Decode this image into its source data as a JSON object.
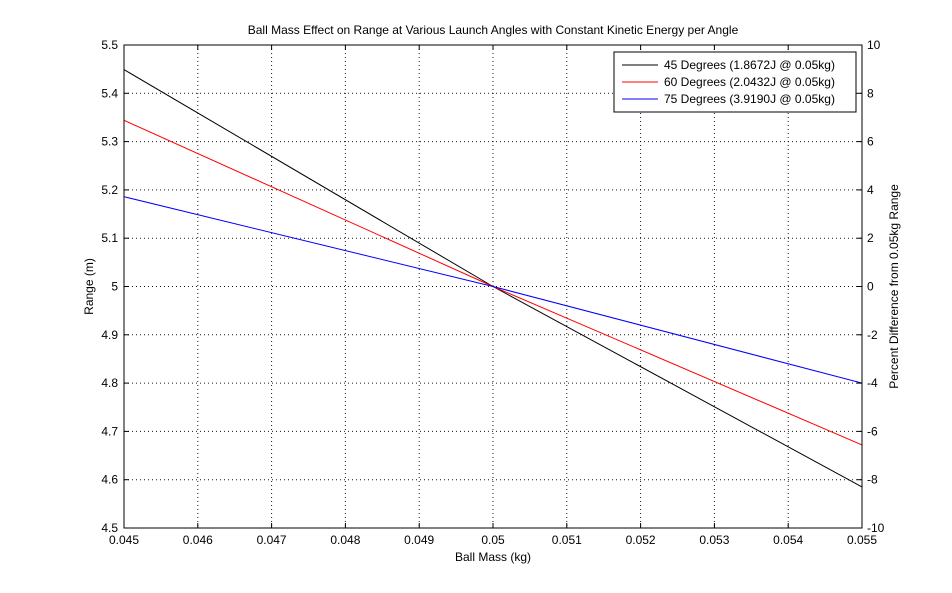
{
  "chart_data": {
    "type": "line",
    "title": "Ball Mass Effect on Range at Various Launch Angles with Constant Kinetic Energy per Angle",
    "xlabel": "Ball Mass (kg)",
    "ylabel": "Range (m)",
    "y2label": "Percent Difference from 0.05kg Range",
    "xlim": [
      0.045,
      0.055
    ],
    "ylim": [
      4.5,
      5.5
    ],
    "y2lim": [
      -10,
      10
    ],
    "xticks": [
      "0.045",
      "0.046",
      "0.047",
      "0.048",
      "0.049",
      "0.05",
      "0.051",
      "0.052",
      "0.053",
      "0.054",
      "0.055"
    ],
    "yticks": [
      "4.5",
      "4.6",
      "4.7",
      "4.8",
      "4.9",
      "5",
      "5.1",
      "5.2",
      "5.3",
      "5.4",
      "5.5"
    ],
    "y2ticks": [
      "-10",
      "-8",
      "-6",
      "-4",
      "-2",
      "0",
      "2",
      "4",
      "6",
      "8",
      "10"
    ],
    "grid": true,
    "legend_position": "top-right",
    "series": [
      {
        "name": "45 Degrees (1.8672J @ 0.05kg)",
        "color": "#000000",
        "x": [
          0.045,
          0.05,
          0.055
        ],
        "y": [
          5.449,
          5.0,
          4.585
        ]
      },
      {
        "name": "60 Degrees (2.0432J @ 0.05kg)",
        "color": "#ff0000",
        "x": [
          0.045,
          0.05,
          0.055
        ],
        "y": [
          5.344,
          5.0,
          4.672
        ]
      },
      {
        "name": "75 Degrees (3.9190J @ 0.05kg)",
        "color": "#0000ff",
        "x": [
          0.045,
          0.05,
          0.055
        ],
        "y": [
          5.186,
          5.0,
          4.8
        ]
      }
    ]
  }
}
